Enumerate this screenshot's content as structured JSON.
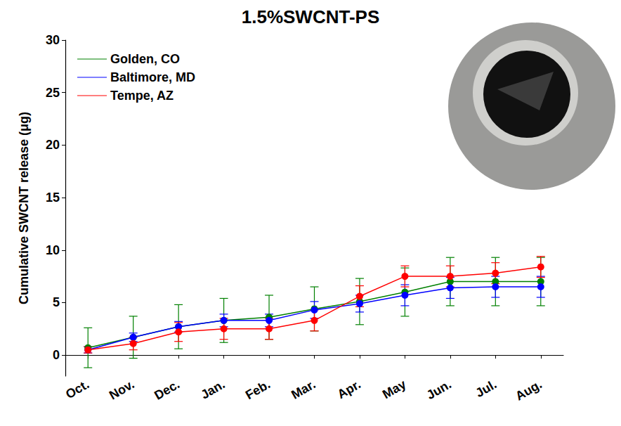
{
  "chart_data": {
    "type": "line",
    "title": "1.5%SWCNT-PS",
    "y_label": "Cumulative SWCNT release (μg)",
    "categories": [
      "Oct.",
      "Nov.",
      "Dec.",
      "Jan.",
      "Feb.",
      "Mar.",
      "Apr.",
      "May",
      "Jun.",
      "Jul.",
      "Aug."
    ],
    "series": [
      {
        "name": "Golden, CO",
        "color": "#008000",
        "marker": "circle",
        "values": [
          0.7,
          1.7,
          2.7,
          3.3,
          3.6,
          4.4,
          5.1,
          6.0,
          7.0,
          7.0,
          7.0
        ],
        "errors": [
          1.9,
          2.0,
          2.1,
          2.1,
          2.1,
          2.1,
          2.2,
          2.3,
          2.3,
          2.3,
          2.3
        ]
      },
      {
        "name": "Baltimore, MD",
        "color": "#0000ff",
        "marker": "circle",
        "values": [
          0.5,
          1.7,
          2.7,
          3.3,
          3.3,
          4.3,
          4.9,
          5.7,
          6.4,
          6.5,
          6.5
        ],
        "errors": [
          0.3,
          0.4,
          0.5,
          0.6,
          0.6,
          0.8,
          0.8,
          1.0,
          1.0,
          1.0,
          1.0
        ]
      },
      {
        "name": "Tempe, AZ",
        "color": "#ff0000",
        "marker": "circle",
        "values": [
          0.5,
          1.1,
          2.2,
          2.5,
          2.5,
          3.3,
          5.6,
          7.5,
          7.5,
          7.8,
          8.4
        ],
        "errors": [
          0.3,
          0.6,
          0.9,
          1.0,
          1.0,
          1.0,
          1.0,
          1.0,
          1.0,
          1.0,
          1.0
        ]
      }
    ],
    "ylim": [
      -2,
      30
    ],
    "yticks": [
      0,
      5,
      10,
      15,
      20,
      25,
      30
    ],
    "grid": false,
    "legend": "top-left"
  }
}
